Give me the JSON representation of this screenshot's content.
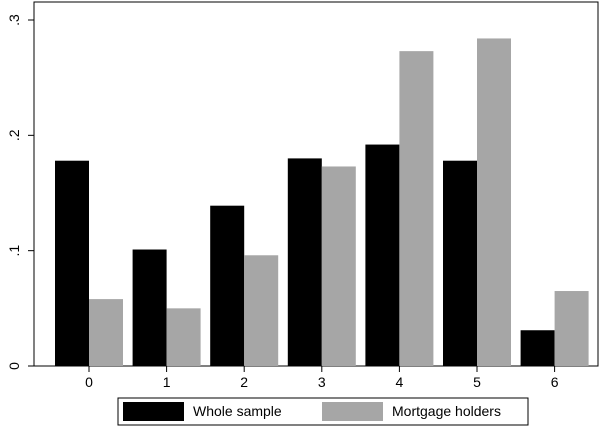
{
  "chart_data": {
    "type": "bar",
    "categories": [
      "0",
      "1",
      "2",
      "3",
      "4",
      "5",
      "6"
    ],
    "series": [
      {
        "name": "Whole sample",
        "values": [
          0.178,
          0.101,
          0.139,
          0.18,
          0.192,
          0.178,
          0.031
        ]
      },
      {
        "name": "Mortgage holders",
        "values": [
          0.058,
          0.05,
          0.096,
          0.173,
          0.273,
          0.284,
          0.065
        ]
      }
    ],
    "y_ticks": [
      {
        "value": 0,
        "label": "0"
      },
      {
        "value": 0.1,
        "label": ".1"
      },
      {
        "value": 0.2,
        "label": ".2"
      },
      {
        "value": 0.3,
        "label": ".3"
      }
    ],
    "ylim": [
      0,
      0.3
    ],
    "title": "",
    "xlabel": "",
    "ylabel": "",
    "grid": false,
    "legend_position": "bottom",
    "colors": [
      "#000000",
      "#a6a6a6"
    ]
  }
}
